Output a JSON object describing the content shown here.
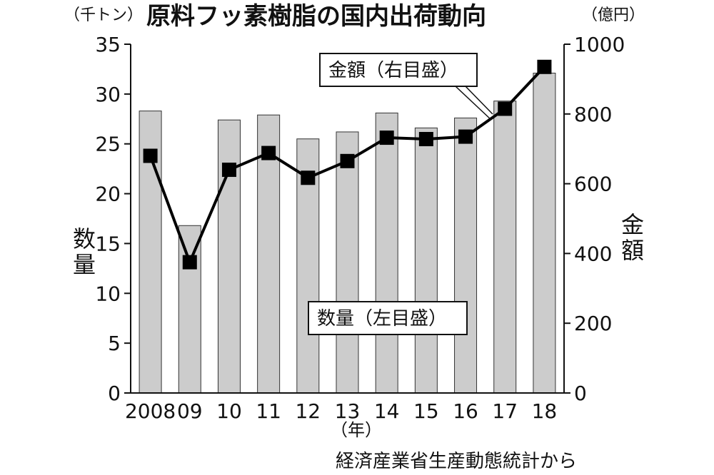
{
  "chart_data": {
    "type": "bar",
    "title": "原料フッ素樹脂の国内出荷動向",
    "left_unit": "（千トン）",
    "right_unit": "（億円）",
    "left_axis_label": "数量",
    "right_axis_label": "金額",
    "x_unit": "（年）",
    "source": "経済産業省生産動態統計から",
    "categories": [
      "2008",
      "09",
      "10",
      "11",
      "12",
      "13",
      "14",
      "15",
      "16",
      "17",
      "18"
    ],
    "left_ticks": [
      "0",
      "5",
      "10",
      "15",
      "20",
      "25",
      "30",
      "35"
    ],
    "right_ticks": [
      "0",
      "200",
      "400",
      "600",
      "800",
      "1000"
    ],
    "ylim_left": [
      0,
      35
    ],
    "ylim_right": [
      0,
      1000
    ],
    "series": [
      {
        "name": "数量（左目盛）",
        "type": "bar",
        "axis": "left",
        "color": "#cccccc",
        "values": [
          28.3,
          16.8,
          27.4,
          27.9,
          25.5,
          26.2,
          28.1,
          26.6,
          27.6,
          29.3,
          32.1
        ]
      },
      {
        "name": "金額（右目盛）",
        "type": "line",
        "axis": "right",
        "color": "#000000",
        "values": [
          680,
          375,
          640,
          688,
          617,
          665,
          732,
          728,
          735,
          815,
          935
        ]
      }
    ]
  }
}
